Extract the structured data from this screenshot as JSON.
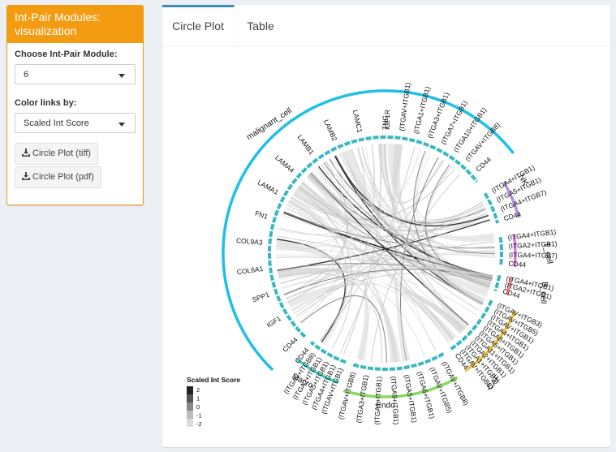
{
  "sidebar": {
    "title": "Int-Pair Modules: visualization",
    "module_label": "Choose Int-Pair Module:",
    "module_value": "6",
    "color_label": "Color links by:",
    "color_value": "Scaled Int Score",
    "btn_tiff": "Circle Plot (tiff)",
    "btn_pdf": "Circle Plot (pdf)"
  },
  "tabs": {
    "circle": "Circle Plot",
    "table": "Table"
  },
  "plot": {
    "groups": {
      "malignant": "malignant_cell",
      "nk": "NK",
      "t": "T_cell",
      "b": "B_cell",
      "caf": "CAF",
      "endo": "Endo",
      "macro": "Macro"
    },
    "malignant_labels": [
      "CD44",
      "IGF1",
      "SPP1",
      "COL6A1",
      "COL9A3",
      "FN1",
      "LAMA1",
      "LAMA4",
      "LAMB1",
      "LAMB2",
      "LAMC1",
      "TNC",
      "IGF1R",
      "(ITGAV+ITGB1)",
      "(ITGA1+ITGB1)",
      "(ITGA3+ITGB1)",
      "(ITGA7+ITGB1)",
      "(ITGA10+ITGB1)",
      "(ITGAV+ITGB8)",
      "CD44"
    ],
    "nk_labels": [
      "(ITGA4+ITGB1)",
      "(ITGA5+ITGB1)",
      "(ITGA4+ITGB7)",
      "CD44"
    ],
    "t_labels": [
      "(ITGA4+ITGB1)",
      "(ITGA2+ITGB1)",
      "(ITGA4+ITGB7)",
      "CD44"
    ],
    "b_labels": [
      "(ITGA4+ITGB1)",
      "(ITGA2+ITGB1)",
      "CD44"
    ],
    "caf_labels": [
      "(ITGAV+ITGB3)",
      "(ITGAV+ITGB5)",
      "(ITGAV+ITGB1)",
      "(ITGA4+ITGB1)",
      "(ITGA8+ITGB1)",
      "(ITGA5+ITGB1)",
      "(ITGA11+ITGB1)",
      "(ITGA2+ITGB1)",
      "(ITGA1+ITGB1)",
      "(ITGAV+ITGB8)",
      "CD44"
    ],
    "endo_labels": [
      "(ITGAV+ITGB8)",
      "(ITGAV+ITGB5)",
      "(ITGA6+ITGB1)",
      "(ITGA5+ITGB1)",
      "(ITGA9+ITGB1)",
      "(ITGA1+ITGB1)",
      "(ITGA3+ITGB1)",
      "(ITGAV+ITGB8)"
    ],
    "macro_labels": [
      "(ITGAV+ITGB1)",
      "(ITGA4+ITGB1)",
      "(ITGA5+ITGB1)",
      "(ITGA2+ITGB1)",
      "(ITGAV+ITGB8)",
      "CD44"
    ],
    "legend": {
      "title": "Scaled Int Score",
      "ticks": [
        "2",
        "1",
        "0",
        "-1",
        "-2"
      ]
    },
    "colors": {
      "malignant": "#1fbfe8",
      "nk": "#b88ae0",
      "t": "#e07ae0",
      "b": "#f08a8a",
      "caf": "#e6c040",
      "endo": "#88d860",
      "macro": "#48c8c0",
      "sector": "#3ab8c0"
    }
  }
}
